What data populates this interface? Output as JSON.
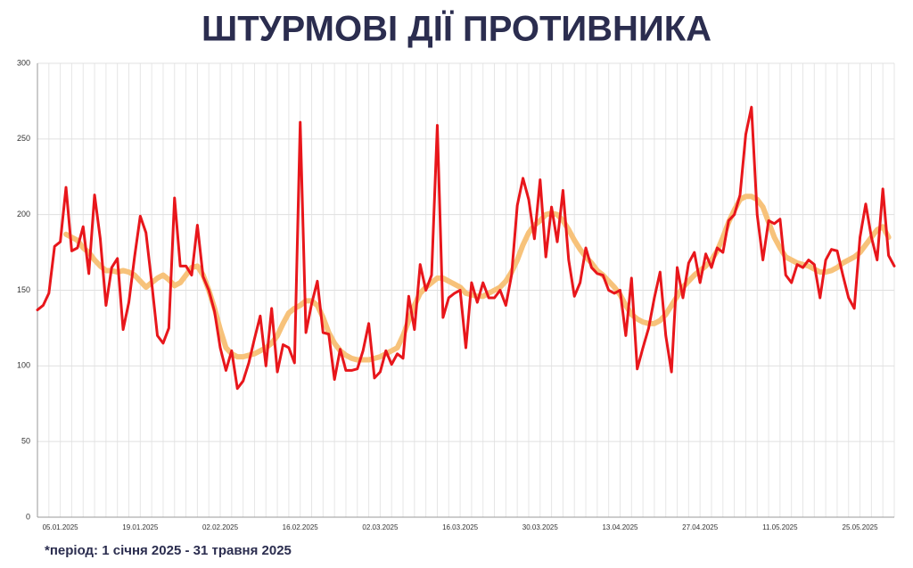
{
  "chart_data": {
    "type": "line",
    "title": "ШТУРМОВІ ДІЇ ПРОТИВНИКА",
    "note": "*період: 1 січня 2025 - 31 травня 2025",
    "categories": [
      null,
      null,
      null,
      null,
      "05.01.2025",
      null,
      null,
      null,
      null,
      null,
      null,
      null,
      null,
      null,
      null,
      null,
      null,
      null,
      "19.01.2025",
      null,
      null,
      null,
      null,
      null,
      null,
      null,
      null,
      null,
      null,
      null,
      null,
      null,
      "02.02.2025",
      null,
      null,
      null,
      null,
      null,
      null,
      null,
      null,
      null,
      null,
      null,
      null,
      null,
      "16.02.2025",
      null,
      null,
      null,
      null,
      null,
      null,
      null,
      null,
      null,
      null,
      null,
      null,
      null,
      "02.03.2025",
      null,
      null,
      null,
      null,
      null,
      null,
      null,
      null,
      null,
      null,
      null,
      null,
      null,
      "16.03.2025",
      null,
      null,
      null,
      null,
      null,
      null,
      null,
      null,
      null,
      null,
      null,
      null,
      null,
      "30.03.2025",
      null,
      null,
      null,
      null,
      null,
      null,
      null,
      null,
      null,
      null,
      null,
      null,
      null,
      "13.04.2025",
      null,
      null,
      null,
      null,
      null,
      null,
      null,
      null,
      null,
      null,
      null,
      null,
      null,
      "27.04.2025",
      null,
      null,
      null,
      null,
      null,
      null,
      null,
      null,
      null,
      null,
      null,
      null,
      null,
      "11.05.2025",
      null,
      null,
      null,
      null,
      null,
      null,
      null,
      null,
      null,
      null,
      null,
      null,
      null,
      "25.05.2025",
      null,
      null,
      null,
      null,
      null,
      null
    ],
    "series": [
      {
        "color": "#e8161b",
        "width": 3,
        "values": [
          137,
          140,
          148,
          179,
          182,
          218,
          176,
          178,
          192,
          161,
          213,
          184,
          140,
          165,
          171,
          124,
          142,
          172,
          199,
          188,
          155,
          120,
          115,
          125,
          211,
          166,
          166,
          160,
          193,
          159,
          150,
          136,
          112,
          97,
          110,
          85,
          90,
          102,
          118,
          133,
          100,
          138,
          96,
          114,
          112,
          102,
          261,
          122,
          141,
          156,
          122,
          121,
          91,
          111,
          97,
          97,
          98,
          110,
          128,
          92,
          96,
          110,
          101,
          108,
          105,
          146,
          124,
          167,
          150,
          160,
          259,
          132,
          145,
          148,
          150,
          112,
          155,
          142,
          155,
          145,
          145,
          150,
          140,
          160,
          206,
          224,
          210,
          184,
          223,
          172,
          205,
          182,
          216,
          170,
          146,
          155,
          178,
          165,
          161,
          160,
          150,
          148,
          150,
          120,
          158,
          98,
          112,
          125,
          145,
          162,
          120,
          96,
          165,
          145,
          168,
          175,
          155,
          174,
          165,
          178,
          175,
          196,
          200,
          213,
          253,
          271,
          200,
          170,
          196,
          194,
          197,
          160,
          155,
          167,
          165,
          170,
          167,
          145,
          170,
          177,
          176,
          160,
          145,
          138,
          185,
          207,
          185,
          170,
          217,
          173,
          166
        ]
      },
      {
        "color": "#f7c27a",
        "width": 6,
        "values": [
          null,
          null,
          null,
          null,
          null,
          187,
          185,
          183,
          178,
          175,
          170,
          166,
          163,
          163,
          162,
          163,
          162,
          160,
          156,
          152,
          155,
          158,
          160,
          157,
          153,
          155,
          160,
          165,
          166,
          160,
          150,
          138,
          124,
          112,
          108,
          106,
          106,
          107,
          108,
          110,
          112,
          115,
          120,
          128,
          135,
          138,
          140,
          143,
          143,
          140,
          132,
          122,
          115,
          110,
          107,
          105,
          104,
          104,
          104,
          105,
          106,
          108,
          110,
          112,
          120,
          130,
          140,
          148,
          152,
          155,
          158,
          158,
          156,
          154,
          152,
          148,
          147,
          146,
          146,
          148,
          150,
          152,
          156,
          162,
          170,
          180,
          188,
          193,
          196,
          200,
          201,
          200,
          196,
          190,
          183,
          177,
          172,
          168,
          163,
          160,
          156,
          152,
          147,
          140,
          134,
          131,
          129,
          128,
          128,
          130,
          134,
          140,
          146,
          152,
          156,
          160,
          163,
          166,
          170,
          176,
          185,
          195,
          203,
          210,
          212,
          212,
          210,
          205,
          195,
          185,
          178,
          172,
          170,
          168,
          167,
          166,
          164,
          162,
          162,
          163,
          165,
          168,
          170,
          172,
          175,
          180,
          185,
          190,
          192,
          185,
          null
        ]
      }
    ],
    "ylim": [
      0,
      300
    ],
    "yticks": [
      0,
      50,
      100,
      150,
      200,
      250,
      300
    ],
    "grid": true
  }
}
